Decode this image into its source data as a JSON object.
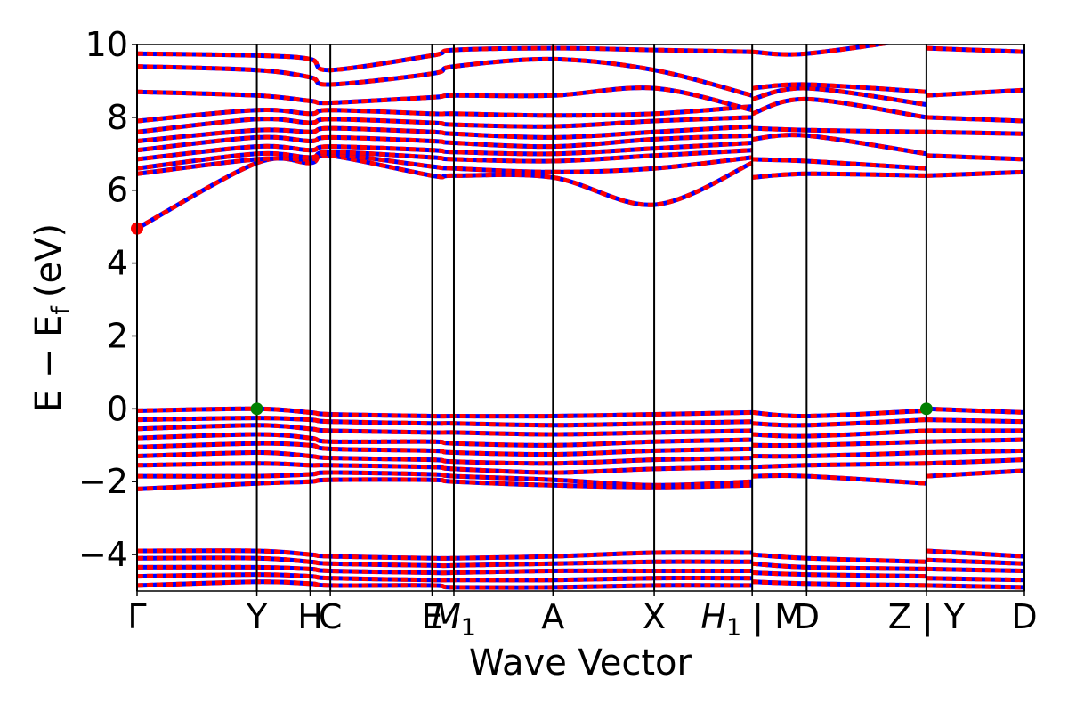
{
  "chart_data": {
    "type": "line",
    "title": "",
    "xlabel": "Wave Vector",
    "ylabel": "E − E",
    "ylabel_subscript": "f",
    "ylabel_unit": "(eV)",
    "ylim": [
      -5,
      10
    ],
    "xlim": [
      0,
      16.3
    ],
    "yticks": [
      -4,
      -2,
      0,
      2,
      4,
      6,
      8,
      10
    ],
    "y_tick_labels": [
      "−4",
      "−2",
      "0",
      "2",
      "4",
      "6",
      "8",
      "10"
    ],
    "grid": false,
    "legend": "none",
    "colors": {
      "spin_up": "#0000ff",
      "spin_down": "#ff0000",
      "vbm_marker": "#008000",
      "cbm_marker": "#ff0000",
      "kpath_line": "#000000"
    },
    "kpoints": [
      {
        "x": 0.0,
        "label": "Γ"
      },
      {
        "x": 2.2,
        "label": "Y"
      },
      {
        "x": 3.18,
        "label": "H"
      },
      {
        "x": 3.55,
        "label": "C"
      },
      {
        "x": 5.42,
        "label": "E"
      },
      {
        "x": 5.82,
        "label": "M",
        "sub": "1"
      },
      {
        "x": 7.64,
        "label": "A"
      },
      {
        "x": 9.5,
        "label": "X"
      },
      {
        "x": 11.3,
        "label": "H",
        "sub": "1",
        "suffix": " | M"
      },
      {
        "x": 12.3,
        "label": "D"
      },
      {
        "x": 14.5,
        "label": "Z | Y"
      },
      {
        "x": 16.3,
        "label": "D"
      }
    ],
    "vbm": [
      {
        "x": 2.2,
        "y": 0.0
      },
      {
        "x": 14.5,
        "y": 0.0
      }
    ],
    "cbm": [
      {
        "x": 0.0,
        "y": 4.95
      }
    ],
    "bands": [
      {
        "x": [
          0,
          2.2,
          3.18,
          3.55,
          5.42,
          5.82,
          7.64,
          9.5,
          11.3
        ],
        "y": [
          4.95,
          6.75,
          6.75,
          6.95,
          6.4,
          6.4,
          6.35,
          5.6,
          6.75
        ]
      },
      {
        "x": [
          0,
          2.2,
          3.18,
          3.55,
          5.42,
          5.82,
          7.64,
          9.5,
          11.3
        ],
        "y": [
          6.45,
          6.85,
          6.85,
          7.0,
          6.65,
          6.6,
          6.5,
          6.6,
          6.9
        ]
      },
      {
        "x": [
          0,
          2.2,
          3.18,
          3.55,
          5.42,
          5.82,
          7.64,
          9.5,
          11.3
        ],
        "y": [
          6.6,
          7.0,
          6.9,
          7.05,
          6.9,
          6.85,
          6.8,
          6.95,
          7.1
        ]
      },
      {
        "x": [
          0,
          2.2,
          3.18,
          3.55,
          5.42,
          5.82,
          7.64,
          9.5,
          11.3
        ],
        "y": [
          6.85,
          7.2,
          7.1,
          7.2,
          7.1,
          7.05,
          7.0,
          7.15,
          7.3
        ]
      },
      {
        "x": [
          0,
          2.2,
          3.18,
          3.55,
          5.42,
          5.82,
          7.64,
          9.5,
          11.3
        ],
        "y": [
          7.1,
          7.45,
          7.35,
          7.45,
          7.35,
          7.3,
          7.2,
          7.4,
          7.5
        ]
      },
      {
        "x": [
          0,
          2.2,
          3.18,
          3.55,
          5.42,
          5.82,
          7.64,
          9.5,
          11.3
        ],
        "y": [
          7.35,
          7.65,
          7.6,
          7.7,
          7.6,
          7.55,
          7.45,
          7.6,
          7.75
        ]
      },
      {
        "x": [
          0,
          2.2,
          3.18,
          3.55,
          5.42,
          5.82,
          7.64,
          9.5,
          11.3
        ],
        "y": [
          7.6,
          7.95,
          7.85,
          7.95,
          7.85,
          7.8,
          7.75,
          7.9,
          8.0
        ]
      },
      {
        "x": [
          0,
          2.2,
          3.18,
          3.55,
          5.42,
          5.82,
          7.64,
          9.5,
          11.3
        ],
        "y": [
          7.9,
          8.2,
          8.1,
          8.2,
          8.1,
          8.1,
          8.05,
          8.1,
          8.3
        ]
      },
      {
        "x": [
          0,
          2.2,
          3.18,
          3.55,
          5.42,
          5.82,
          7.64,
          9.5,
          11.3
        ],
        "y": [
          8.7,
          8.6,
          8.45,
          8.4,
          8.55,
          8.6,
          8.6,
          8.8,
          8.2
        ]
      },
      {
        "x": [
          0,
          2.2,
          3.18,
          3.55,
          5.42,
          5.82,
          7.64,
          9.5,
          11.3
        ],
        "y": [
          9.4,
          9.3,
          9.1,
          8.9,
          9.2,
          9.4,
          9.6,
          9.3,
          8.6
        ]
      },
      {
        "x": [
          0,
          2.2,
          3.18,
          3.55,
          5.42,
          5.82,
          7.64,
          9.5,
          11.3
        ],
        "y": [
          9.75,
          9.7,
          9.6,
          9.3,
          9.7,
          9.85,
          9.9,
          9.85,
          9.8
        ]
      },
      {
        "x": [
          11.3,
          12.3,
          14.5
        ],
        "y": [
          6.35,
          6.45,
          6.4
        ]
      },
      {
        "x": [
          11.3,
          12.3,
          14.5
        ],
        "y": [
          6.85,
          6.8,
          6.6
        ]
      },
      {
        "x": [
          11.3,
          12.3,
          14.5
        ],
        "y": [
          7.4,
          7.5,
          7.0
        ]
      },
      {
        "x": [
          11.3,
          12.3,
          14.5
        ],
        "y": [
          7.7,
          7.65,
          7.6
        ]
      },
      {
        "x": [
          11.3,
          12.3,
          14.5
        ],
        "y": [
          8.1,
          8.5,
          8.0
        ]
      },
      {
        "x": [
          11.3,
          12.3,
          14.5
        ],
        "y": [
          8.5,
          8.8,
          8.35
        ]
      },
      {
        "x": [
          11.3,
          12.3,
          14.5
        ],
        "y": [
          8.8,
          8.9,
          8.7
        ]
      },
      {
        "x": [
          11.3,
          12.3,
          14.5
        ],
        "y": [
          9.8,
          9.75,
          10.2
        ]
      },
      {
        "x": [
          14.5,
          16.3
        ],
        "y": [
          6.4,
          6.5
        ]
      },
      {
        "x": [
          14.5,
          16.3
        ],
        "y": [
          6.95,
          6.85
        ]
      },
      {
        "x": [
          14.5,
          16.3
        ],
        "y": [
          7.6,
          7.55
        ]
      },
      {
        "x": [
          14.5,
          16.3
        ],
        "y": [
          8.0,
          7.9
        ]
      },
      {
        "x": [
          14.5,
          16.3
        ],
        "y": [
          8.6,
          8.75
        ]
      },
      {
        "x": [
          14.5,
          16.3
        ],
        "y": [
          9.9,
          9.8
        ]
      },
      {
        "x": [
          0,
          2.2,
          3.18,
          3.55,
          5.42,
          5.82,
          7.64,
          9.5,
          11.3
        ],
        "y": [
          -0.05,
          0.0,
          -0.1,
          -0.15,
          -0.2,
          -0.2,
          -0.2,
          -0.15,
          -0.1
        ]
      },
      {
        "x": [
          0,
          2.2,
          3.18,
          3.55,
          5.42,
          5.82,
          7.64,
          9.5,
          11.3
        ],
        "y": [
          -0.3,
          -0.25,
          -0.3,
          -0.35,
          -0.4,
          -0.4,
          -0.45,
          -0.4,
          -0.35
        ]
      },
      {
        "x": [
          0,
          2.2,
          3.18,
          3.55,
          5.42,
          5.82,
          7.64,
          9.5,
          11.3
        ],
        "y": [
          -0.55,
          -0.45,
          -0.55,
          -0.6,
          -0.65,
          -0.65,
          -0.7,
          -0.65,
          -0.6
        ]
      },
      {
        "x": [
          0,
          2.2,
          3.18,
          3.55,
          5.42,
          5.82,
          7.64,
          9.5,
          11.3
        ],
        "y": [
          -0.8,
          -0.7,
          -0.8,
          -0.9,
          -0.9,
          -0.95,
          -1.0,
          -0.9,
          -0.85
        ]
      },
      {
        "x": [
          0,
          2.2,
          3.18,
          3.55,
          5.42,
          5.82,
          7.64,
          9.5,
          11.3
        ],
        "y": [
          -1.05,
          -0.95,
          -1.0,
          -1.1,
          -1.15,
          -1.2,
          -1.25,
          -1.15,
          -1.1
        ]
      },
      {
        "x": [
          0,
          2.2,
          3.18,
          3.55,
          5.42,
          5.82,
          7.64,
          9.5,
          11.3
        ],
        "y": [
          -1.3,
          -1.2,
          -1.3,
          -1.35,
          -1.4,
          -1.45,
          -1.5,
          -1.4,
          -1.35
        ]
      },
      {
        "x": [
          0,
          2.2,
          3.18,
          3.55,
          5.42,
          5.82,
          7.64,
          9.5,
          11.3
        ],
        "y": [
          -1.55,
          -1.5,
          -1.55,
          -1.55,
          -1.6,
          -1.65,
          -1.75,
          -1.65,
          -1.6
        ]
      },
      {
        "x": [
          0,
          2.2,
          3.18,
          3.55,
          5.42,
          5.82,
          7.64,
          9.5,
          11.3
        ],
        "y": [
          -1.85,
          -1.85,
          -1.8,
          -1.75,
          -1.8,
          -1.85,
          -1.95,
          -2.1,
          -2.0
        ]
      },
      {
        "x": [
          0,
          2.2,
          3.18,
          3.55,
          5.42,
          5.82,
          7.64,
          9.5,
          11.3
        ],
        "y": [
          -2.2,
          -2.05,
          -2.0,
          -1.95,
          -1.95,
          -2.0,
          -2.1,
          -2.15,
          -2.1
        ]
      },
      {
        "x": [
          11.3,
          12.3,
          14.5
        ],
        "y": [
          -0.1,
          -0.2,
          -0.05
        ]
      },
      {
        "x": [
          11.3,
          12.3,
          14.5
        ],
        "y": [
          -0.4,
          -0.45,
          -0.3
        ]
      },
      {
        "x": [
          11.3,
          12.3,
          14.5
        ],
        "y": [
          -0.7,
          -0.75,
          -0.6
        ]
      },
      {
        "x": [
          11.3,
          12.3,
          14.5
        ],
        "y": [
          -1.0,
          -1.0,
          -0.9
        ]
      },
      {
        "x": [
          11.3,
          12.3,
          14.5
        ],
        "y": [
          -1.3,
          -1.3,
          -1.2
        ]
      },
      {
        "x": [
          11.3,
          12.3,
          14.5
        ],
        "y": [
          -1.6,
          -1.55,
          -1.5
        ]
      },
      {
        "x": [
          11.3,
          12.3,
          14.5
        ],
        "y": [
          -1.85,
          -1.85,
          -2.05
        ]
      },
      {
        "x": [
          14.5,
          16.3
        ],
        "y": [
          0.0,
          -0.1
        ]
      },
      {
        "x": [
          14.5,
          16.3
        ],
        "y": [
          -0.3,
          -0.35
        ]
      },
      {
        "x": [
          14.5,
          16.3
        ],
        "y": [
          -0.6,
          -0.6
        ]
      },
      {
        "x": [
          14.5,
          16.3
        ],
        "y": [
          -0.9,
          -0.85
        ]
      },
      {
        "x": [
          14.5,
          16.3
        ],
        "y": [
          -1.2,
          -1.15
        ]
      },
      {
        "x": [
          14.5,
          16.3
        ],
        "y": [
          -1.5,
          -1.4
        ]
      },
      {
        "x": [
          14.5,
          16.3
        ],
        "y": [
          -1.85,
          -1.7
        ]
      },
      {
        "x": [
          0,
          2.2,
          3.18,
          3.55,
          5.42,
          5.82,
          7.64,
          9.5,
          11.3
        ],
        "y": [
          -3.9,
          -3.9,
          -4.0,
          -4.05,
          -4.1,
          -4.1,
          -4.05,
          -3.95,
          -3.95
        ]
      },
      {
        "x": [
          0,
          2.2,
          3.18,
          3.55,
          5.42,
          5.82,
          7.64,
          9.5,
          11.3
        ],
        "y": [
          -4.1,
          -4.1,
          -4.2,
          -4.25,
          -4.3,
          -4.3,
          -4.25,
          -4.2,
          -4.2
        ]
      },
      {
        "x": [
          0,
          2.2,
          3.18,
          3.55,
          5.42,
          5.82,
          7.64,
          9.5,
          11.3
        ],
        "y": [
          -4.35,
          -4.35,
          -4.4,
          -4.45,
          -4.5,
          -4.5,
          -4.45,
          -4.45,
          -4.45
        ]
      },
      {
        "x": [
          0,
          2.2,
          3.18,
          3.55,
          5.42,
          5.82,
          7.64,
          9.5,
          11.3
        ],
        "y": [
          -4.6,
          -4.55,
          -4.6,
          -4.65,
          -4.7,
          -4.7,
          -4.7,
          -4.65,
          -4.65
        ]
      },
      {
        "x": [
          0,
          2.2,
          3.18,
          3.55,
          5.42,
          5.82,
          7.64,
          9.5,
          11.3
        ],
        "y": [
          -4.85,
          -4.75,
          -4.8,
          -4.85,
          -4.85,
          -4.9,
          -4.9,
          -4.85,
          -4.85
        ]
      },
      {
        "x": [
          11.3,
          12.3,
          14.5
        ],
        "y": [
          -4.0,
          -4.1,
          -4.2
        ]
      },
      {
        "x": [
          11.3,
          12.3,
          14.5
        ],
        "y": [
          -4.25,
          -4.35,
          -4.4
        ]
      },
      {
        "x": [
          11.3,
          12.3,
          14.5
        ],
        "y": [
          -4.5,
          -4.55,
          -4.6
        ]
      },
      {
        "x": [
          11.3,
          12.3,
          14.5
        ],
        "y": [
          -4.75,
          -4.8,
          -4.85
        ]
      },
      {
        "x": [
          14.5,
          16.3
        ],
        "y": [
          -3.9,
          -4.05
        ]
      },
      {
        "x": [
          14.5,
          16.3
        ],
        "y": [
          -4.15,
          -4.25
        ]
      },
      {
        "x": [
          14.5,
          16.3
        ],
        "y": [
          -4.4,
          -4.45
        ]
      },
      {
        "x": [
          14.5,
          16.3
        ],
        "y": [
          -4.65,
          -4.7
        ]
      },
      {
        "x": [
          14.5,
          16.3
        ],
        "y": [
          -4.85,
          -4.9
        ]
      }
    ]
  }
}
